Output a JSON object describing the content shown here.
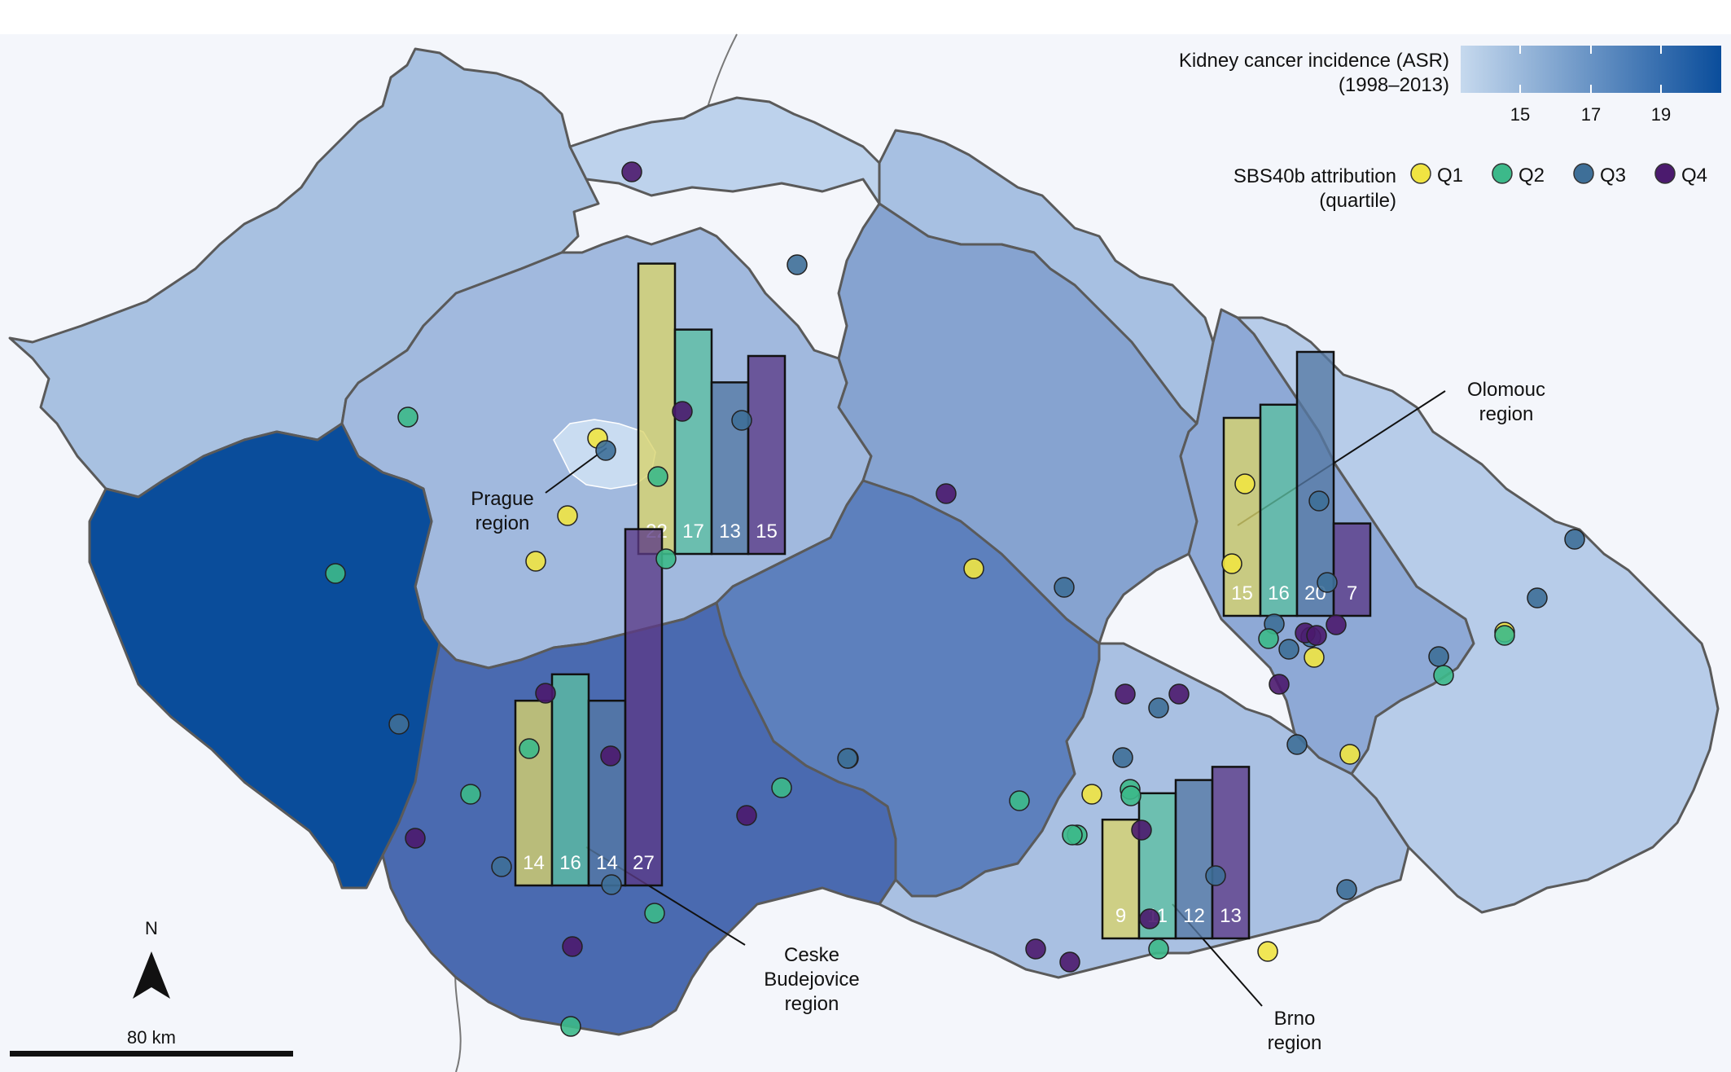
{
  "legend": {
    "incidence_title_line1": "Kidney cancer incidence (ASR)",
    "incidence_title_line2": "(1998–2013)",
    "incidence_ticks": [
      "15",
      "17",
      "19"
    ],
    "incidence_color_low": "#c6d9ee",
    "incidence_color_high": "#0a4d9b",
    "attribution_title_line1": "SBS40b attribution",
    "attribution_title_line2": "(quartile)",
    "quartiles": [
      {
        "label": "Q1",
        "color": "#f0e442"
      },
      {
        "label": "Q2",
        "color": "#3cb98a"
      },
      {
        "label": "Q3",
        "color": "#3e6f98"
      },
      {
        "label": "Q4",
        "color": "#4b1a6e"
      }
    ]
  },
  "regions": [
    {
      "name_line1": "Prague",
      "name_line2": "region",
      "bars": [
        22,
        17,
        13,
        15
      ]
    },
    {
      "name_line1": "Olomouc",
      "name_line2": "region",
      "bars": [
        15,
        16,
        20,
        7
      ]
    },
    {
      "name_line1": "Ceske",
      "name_line2": "Budejovice",
      "name_line3": "region",
      "bars": [
        14,
        16,
        14,
        27
      ]
    },
    {
      "name_line1": "Brno",
      "name_line2": "region",
      "bars": [
        9,
        11,
        12,
        13
      ]
    }
  ],
  "compass_label": "N",
  "scale_label": "80 km"
}
